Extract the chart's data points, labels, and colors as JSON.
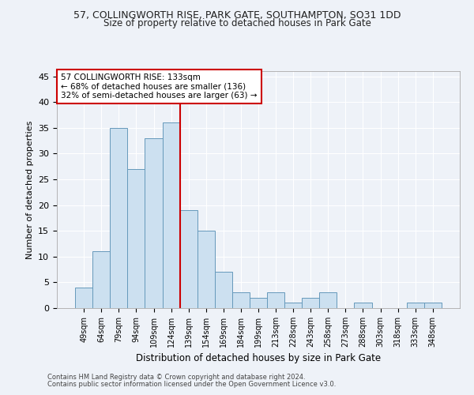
{
  "title1": "57, COLLINGWORTH RISE, PARK GATE, SOUTHAMPTON, SO31 1DD",
  "title2": "Size of property relative to detached houses in Park Gate",
  "xlabel": "Distribution of detached houses by size in Park Gate",
  "ylabel": "Number of detached properties",
  "categories": [
    "49sqm",
    "64sqm",
    "79sqm",
    "94sqm",
    "109sqm",
    "124sqm",
    "139sqm",
    "154sqm",
    "169sqm",
    "184sqm",
    "199sqm",
    "213sqm",
    "228sqm",
    "243sqm",
    "258sqm",
    "273sqm",
    "288sqm",
    "303sqm",
    "318sqm",
    "333sqm",
    "348sqm"
  ],
  "values": [
    4,
    11,
    35,
    27,
    33,
    36,
    19,
    15,
    7,
    3,
    2,
    3,
    1,
    2,
    3,
    0,
    1,
    0,
    0,
    1,
    1
  ],
  "bar_color": "#cce0f0",
  "bar_edge_color": "#6699bb",
  "vline_x": 5.5,
  "vline_color": "#cc0000",
  "annotation_text": "57 COLLINGWORTH RISE: 133sqm\n← 68% of detached houses are smaller (136)\n32% of semi-detached houses are larger (63) →",
  "annotation_box_color": "#ffffff",
  "annotation_box_edge": "#cc0000",
  "ylim": [
    0,
    46
  ],
  "yticks": [
    0,
    5,
    10,
    15,
    20,
    25,
    30,
    35,
    40,
    45
  ],
  "footer1": "Contains HM Land Registry data © Crown copyright and database right 2024.",
  "footer2": "Contains public sector information licensed under the Open Government Licence v3.0.",
  "bg_color": "#eef2f8",
  "grid_color": "#ffffff",
  "title1_fontsize": 9,
  "title2_fontsize": 8.5
}
